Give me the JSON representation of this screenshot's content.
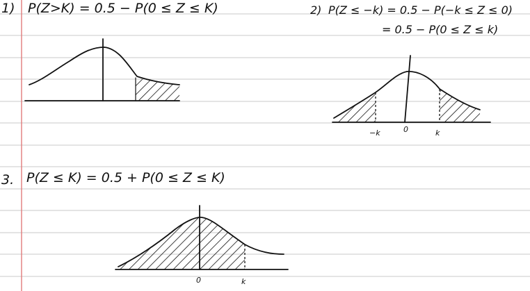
{
  "colors": {
    "paper": "#ffffff",
    "rule_line": "#c8c8c8",
    "margin_line": "#e07b7b",
    "ink": "#111111"
  },
  "notes": {
    "eq1": {
      "number": "1)",
      "text": "P(Z>K)  = 0.5 − P(0 ≤ Z ≤ K)"
    },
    "eq2": {
      "number": "2)",
      "line1": "P(Z ≤ −k) = 0.5 − P(−k ≤ Z ≤ 0)",
      "line2": "= 0.5 − P(0 ≤ Z ≤ k)"
    },
    "eq3": {
      "number": "3.",
      "text": "P(Z ≤ K) = 0.5 + P(0 ≤ Z ≤ K)"
    },
    "graph2_ticks": {
      "neg_k": "−k",
      "zero": "0",
      "k": "k"
    },
    "graph3_ticks": {
      "zero": "0",
      "k": "k"
    }
  }
}
